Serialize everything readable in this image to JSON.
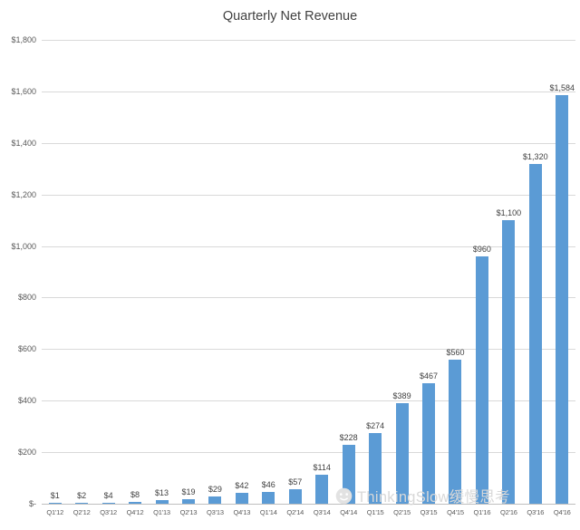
{
  "chart_data": {
    "type": "bar",
    "title": "Quarterly Net Revenue",
    "categories": [
      "Q1'12",
      "Q2'12",
      "Q3'12",
      "Q4'12",
      "Q1'13",
      "Q2'13",
      "Q3'13",
      "Q4'13",
      "Q1'14",
      "Q2'14",
      "Q3'14",
      "Q4'14",
      "Q1'15",
      "Q2'15",
      "Q3'15",
      "Q4'15",
      "Q1'16",
      "Q2'16",
      "Q3'16",
      "Q4'16"
    ],
    "values": [
      1,
      2,
      4,
      8,
      13,
      19,
      29,
      42,
      46,
      57,
      114,
      228,
      274,
      389,
      467,
      560,
      960,
      1100,
      1320,
      1584
    ],
    "value_labels": [
      "$1",
      "$2",
      "$4",
      "$8",
      "$13",
      "$19",
      "$29",
      "$42",
      "$46",
      "$57",
      "$114",
      "$228",
      "$274",
      "$389",
      "$467",
      "$560",
      "$960",
      "$1,100",
      "$1,320",
      "$1,584"
    ],
    "xlabel": "",
    "ylabel": "",
    "ylim": [
      0,
      1800
    ],
    "ytick_step": 200,
    "ytick_labels": [
      "$-",
      "$200",
      "$400",
      "$600",
      "$800",
      "$1,000",
      "$1,200",
      "$1,400",
      "$1,600",
      "$1,800"
    ],
    "grid": true,
    "legend": "none",
    "bar_color": "#5B9BD5",
    "grid_color": "#D9D9D9",
    "axis_color": "#BFBFBF",
    "title_color": "#404040",
    "tick_color": "#595959",
    "data_label_color": "#404040"
  },
  "watermark": {
    "text": "ThinkingSlow缓慢思考",
    "icon": "smiley-face-icon",
    "color": "#D8D8D8"
  }
}
